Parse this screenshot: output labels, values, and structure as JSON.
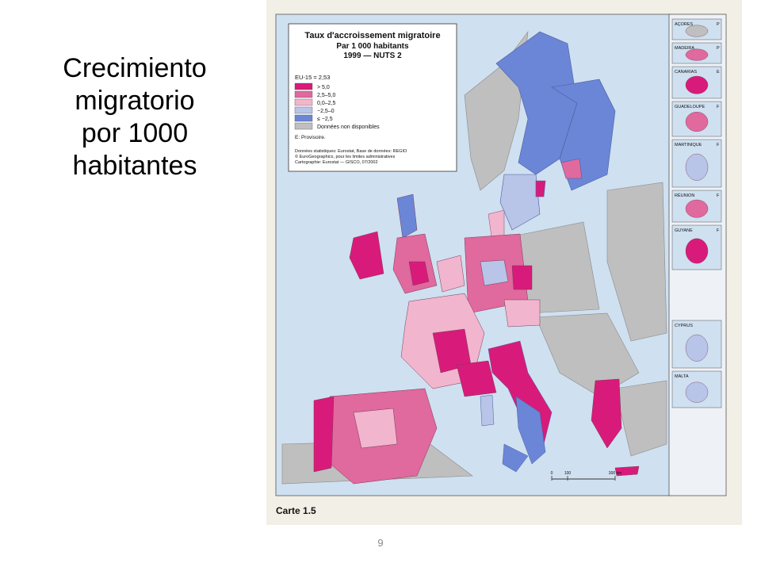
{
  "slide": {
    "title_lines": [
      "Crecimiento",
      "migratorio",
      "por 1000",
      "habitantes"
    ],
    "page_number": "9"
  },
  "map": {
    "title": "Taux d'accroissement migratoire",
    "subtitle_1": "Par 1 000 habitants",
    "subtitle_2": "1999 — NUTS 2",
    "legend": {
      "eu_average": "EU-15 = 2,53",
      "items": [
        {
          "label": "> 5,0",
          "color": "#d81b7a"
        },
        {
          "label": "2,5–5,0",
          "color": "#e0699e"
        },
        {
          "label": "0,0–2,5",
          "color": "#f1b5cd"
        },
        {
          "label": "−2,5–0",
          "color": "#b8c4e8"
        },
        {
          "label": "≤ −2,5",
          "color": "#6b86d6"
        },
        {
          "label": "Données non disponibles",
          "color": "#bfbfbf"
        }
      ],
      "provisional_note": "E: Provisoire."
    },
    "sources": [
      "Données statistiques: Eurostat, Base de données: REGIO",
      "© EuroGeographics, pour les limites administratives",
      "Cartographie: Eurostat — GISCO, 07/2002"
    ],
    "insets": [
      "AÇORES",
      "MADEIRA",
      "CANARIAS",
      "GUADELOUPE",
      "MARTINIQUE",
      "RÉUNION",
      "GUYANE",
      "CYPRUS",
      "MALTA"
    ],
    "inset_country_codes": [
      "P",
      "P",
      "E",
      "F",
      "F",
      "F",
      "F"
    ],
    "scale_labels": [
      "0",
      "100",
      "300 km"
    ],
    "map_label": "Carte 1.5",
    "colors": {
      "sea": "#cfe0f0",
      "no_data": "#bfbfbf",
      "scan_border": "#f2f0e6"
    }
  }
}
